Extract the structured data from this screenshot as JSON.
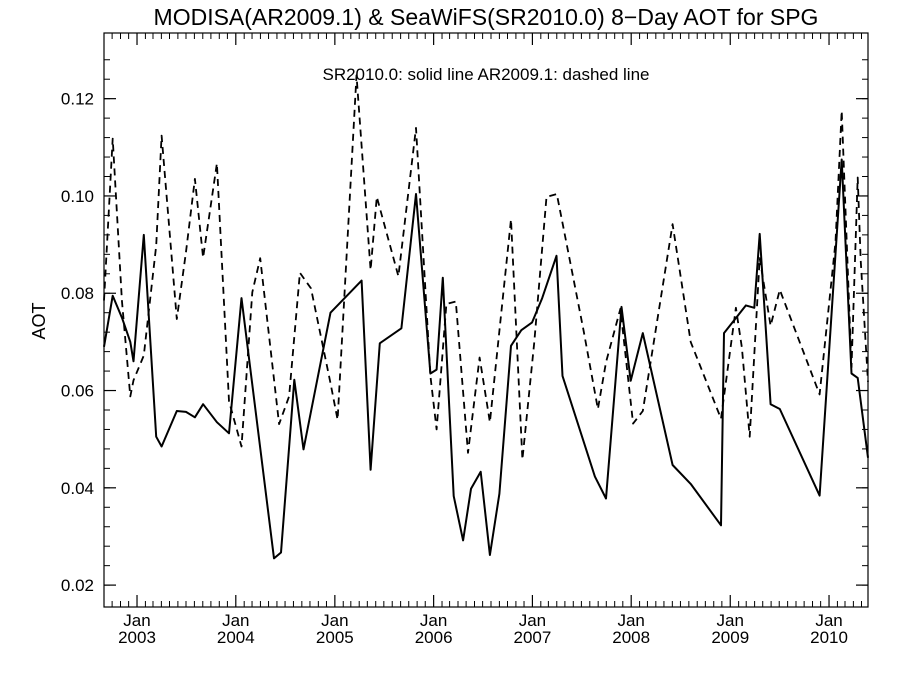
{
  "chart_data": {
    "type": "line",
    "title": "MODISA(AR2009.1) & SeaWiFS(SR2010.0) 8−Day AOT for SPG",
    "annotation": "SR2010.0: solid line   AR2009.1: dashed line",
    "ylabel": "AOT",
    "xlabel": "",
    "xlim": [
      "2002-09-01",
      "2010-05-25"
    ],
    "ylim": [
      0.0155,
      0.1335
    ],
    "yticks": [
      0.02,
      0.04,
      0.06,
      0.08,
      0.1,
      0.12
    ],
    "ytick_labels": [
      "0.02",
      "0.04",
      "0.06",
      "0.08",
      "0.10",
      "0.12"
    ],
    "xticks": [
      {
        "date": "2003-01-01",
        "month": "Jan",
        "year": "2003"
      },
      {
        "date": "2004-01-01",
        "month": "Jan",
        "year": "2004"
      },
      {
        "date": "2005-01-01",
        "month": "Jan",
        "year": "2005"
      },
      {
        "date": "2006-01-01",
        "month": "Jan",
        "year": "2006"
      },
      {
        "date": "2007-01-01",
        "month": "Jan",
        "year": "2007"
      },
      {
        "date": "2008-01-01",
        "month": "Jan",
        "year": "2008"
      },
      {
        "date": "2009-01-01",
        "month": "Jan",
        "year": "2009"
      },
      {
        "date": "2010-01-01",
        "month": "Jan",
        "year": "2010"
      }
    ],
    "grid": false,
    "series": [
      {
        "name": "SR2010.0",
        "style": "solid",
        "color": "#000000",
        "points": [
          [
            "2002-09-01",
            0.069
          ],
          [
            "2002-10-03",
            0.0795
          ],
          [
            "2002-11-06",
            0.075
          ],
          [
            "2002-12-07",
            0.07
          ],
          [
            "2002-12-19",
            0.066
          ],
          [
            "2003-01-26",
            0.092
          ],
          [
            "2003-03-13",
            0.0505
          ],
          [
            "2003-04-02",
            0.0485
          ],
          [
            "2003-05-28",
            0.0558
          ],
          [
            "2003-07-01",
            0.0556
          ],
          [
            "2003-08-03",
            0.0545
          ],
          [
            "2003-09-02",
            0.0572
          ],
          [
            "2003-10-23",
            0.0535
          ],
          [
            "2003-12-07",
            0.0512
          ],
          [
            "2004-01-22",
            0.079
          ],
          [
            "2004-05-21",
            0.0255
          ],
          [
            "2004-06-16",
            0.0267
          ],
          [
            "2004-08-04",
            0.0622
          ],
          [
            "2004-09-07",
            0.0479
          ],
          [
            "2004-12-16",
            0.076
          ],
          [
            "2005-04-10",
            0.0826
          ],
          [
            "2005-05-13",
            0.0437
          ],
          [
            "2005-06-16",
            0.0697
          ],
          [
            "2005-09-04",
            0.0728
          ],
          [
            "2005-10-28",
            0.1004
          ],
          [
            "2005-12-20",
            0.0635
          ],
          [
            "2006-01-12",
            0.0643
          ],
          [
            "2006-02-04",
            0.0832
          ],
          [
            "2006-03-16",
            0.0383
          ],
          [
            "2006-04-20",
            0.0292
          ],
          [
            "2006-05-19",
            0.0398
          ],
          [
            "2006-06-24",
            0.0433
          ],
          [
            "2006-07-28",
            0.0262
          ],
          [
            "2006-09-01",
            0.0388
          ],
          [
            "2006-10-14",
            0.0692
          ],
          [
            "2006-11-21",
            0.0724
          ],
          [
            "2006-12-31",
            0.074
          ],
          [
            "2007-02-06",
            0.079
          ],
          [
            "2007-03-31",
            0.0877
          ],
          [
            "2007-04-22",
            0.063
          ],
          [
            "2007-08-20",
            0.0423
          ],
          [
            "2007-09-30",
            0.0378
          ],
          [
            "2007-11-26",
            0.0772
          ],
          [
            "2007-12-30",
            0.062
          ],
          [
            "2008-02-13",
            0.0718
          ],
          [
            "2008-06-02",
            0.0447
          ],
          [
            "2008-08-08",
            0.0408
          ],
          [
            "2008-11-28",
            0.0323
          ],
          [
            "2008-12-09",
            0.0718
          ],
          [
            "2009-02-28",
            0.0775
          ],
          [
            "2009-03-31",
            0.077
          ],
          [
            "2009-04-20",
            0.0922
          ],
          [
            "2009-05-30",
            0.0572
          ],
          [
            "2009-07-03",
            0.0562
          ],
          [
            "2009-11-27",
            0.0384
          ],
          [
            "2010-02-17",
            0.1075
          ],
          [
            "2010-03-25",
            0.0635
          ],
          [
            "2010-04-17",
            0.0626
          ],
          [
            "2010-05-25",
            0.0462
          ]
        ]
      },
      {
        "name": "AR2009.1",
        "style": "dashed",
        "color": "#000000",
        "points": [
          [
            "2002-09-01",
            0.0785
          ],
          [
            "2002-10-03",
            0.1118
          ],
          [
            "2002-11-06",
            0.0785
          ],
          [
            "2002-12-07",
            0.0588
          ],
          [
            "2002-12-19",
            0.0621
          ],
          [
            "2003-01-26",
            0.0672
          ],
          [
            "2003-03-13",
            0.0898
          ],
          [
            "2003-04-02",
            0.1124
          ],
          [
            "2003-05-28",
            0.0747
          ],
          [
            "2003-07-01",
            0.0885
          ],
          [
            "2003-08-03",
            0.1035
          ],
          [
            "2003-09-02",
            0.0873
          ],
          [
            "2003-10-23",
            0.1067
          ],
          [
            "2003-12-07",
            0.0578
          ],
          [
            "2004-01-22",
            0.0485
          ],
          [
            "2004-03-02",
            0.0802
          ],
          [
            "2004-03-31",
            0.0872
          ],
          [
            "2004-06-09",
            0.0531
          ],
          [
            "2004-07-16",
            0.0588
          ],
          [
            "2004-08-25",
            0.0842
          ],
          [
            "2004-10-05",
            0.081
          ],
          [
            "2004-12-16",
            0.0615
          ],
          [
            "2005-01-11",
            0.054
          ],
          [
            "2005-03-22",
            0.1248
          ],
          [
            "2005-05-13",
            0.0848
          ],
          [
            "2005-06-05",
            0.0998
          ],
          [
            "2005-08-24",
            0.0835
          ],
          [
            "2005-10-28",
            0.114
          ],
          [
            "2005-12-20",
            0.063
          ],
          [
            "2006-01-12",
            0.052
          ],
          [
            "2006-02-17",
            0.0778
          ],
          [
            "2006-03-24",
            0.0783
          ],
          [
            "2006-05-08",
            0.0472
          ],
          [
            "2006-06-20",
            0.0668
          ],
          [
            "2006-07-28",
            0.0535
          ],
          [
            "2006-10-14",
            0.0952
          ],
          [
            "2006-11-25",
            0.0458
          ],
          [
            "2007-01-08",
            0.07
          ],
          [
            "2007-02-22",
            0.0998
          ],
          [
            "2007-04-01",
            0.1004
          ],
          [
            "2007-05-12",
            0.0888
          ],
          [
            "2007-07-09",
            0.0723
          ],
          [
            "2007-08-31",
            0.0562
          ],
          [
            "2007-09-30",
            0.0658
          ],
          [
            "2007-11-22",
            0.0768
          ],
          [
            "2008-01-08",
            0.0532
          ],
          [
            "2008-02-13",
            0.0558
          ],
          [
            "2008-06-02",
            0.0942
          ],
          [
            "2008-08-08",
            0.07
          ],
          [
            "2008-11-28",
            0.0542
          ],
          [
            "2009-01-22",
            0.077
          ],
          [
            "2009-02-13",
            0.0688
          ],
          [
            "2009-03-14",
            0.0505
          ],
          [
            "2009-04-20",
            0.0872
          ],
          [
            "2009-05-30",
            0.0733
          ],
          [
            "2009-07-03",
            0.0807
          ],
          [
            "2009-11-27",
            0.0592
          ],
          [
            "2010-01-25",
            0.0905
          ],
          [
            "2010-02-17",
            0.1175
          ],
          [
            "2010-03-25",
            0.0648
          ],
          [
            "2010-04-17",
            0.1038
          ],
          [
            "2010-04-28",
            0.0868
          ],
          [
            "2010-05-25",
            0.0618
          ]
        ]
      }
    ]
  }
}
